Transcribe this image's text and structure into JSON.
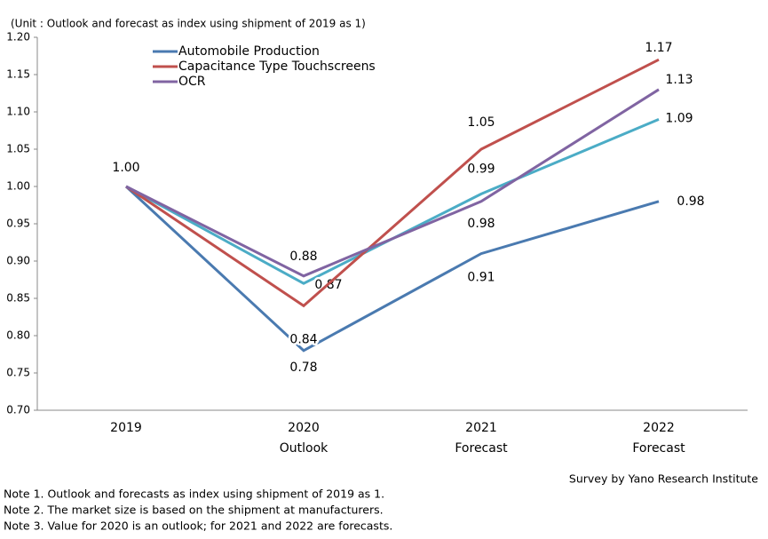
{
  "chart_data": {
    "type": "line",
    "unit_note": "(Unit : Outlook and forecast as index using shipment of 2019 as 1)",
    "categories": [
      "2019",
      "2020",
      "2021",
      "2022"
    ],
    "category_notes": [
      null,
      "Outlook",
      "Forecast",
      "Forecast"
    ],
    "ylim": [
      0.7,
      1.2
    ],
    "yticks": [
      {
        "value": 0.7,
        "label": "0.70"
      },
      0.75,
      {
        "value": 0.8,
        "label": "0.80"
      },
      0.85,
      {
        "value": 0.9,
        "label": "0.90"
      },
      0.95,
      {
        "value": 1.0,
        "label": "1.00"
      },
      1.05,
      {
        "value": 1.1,
        "label": "1.10"
      },
      1.15,
      {
        "value": 1.2,
        "label": "1.20"
      }
    ],
    "grid": false,
    "series": [
      {
        "name": "Automobile Production",
        "color": "#4a7ab0",
        "values": [
          1.0,
          0.78,
          0.91,
          0.98
        ],
        "value_labels": [
          "1.00",
          "0.78",
          "0.91",
          "0.98"
        ]
      },
      {
        "name": "Capacitance Type Touchscreens",
        "color": "#c0504d",
        "values": [
          1.0,
          0.84,
          1.05,
          1.17
        ],
        "value_labels": [
          null,
          "0.84",
          "1.05",
          "1.17"
        ]
      },
      {
        "name": "OCR",
        "color": "#8064a2",
        "values": [
          1.0,
          0.88,
          0.98,
          1.13
        ],
        "value_labels": [
          null,
          "0.88",
          "0.98",
          "1.13"
        ]
      },
      {
        "color": "#4bacc6",
        "values": [
          1.0,
          0.87,
          0.99,
          1.09
        ],
        "value_labels": [
          null,
          "0.87",
          "0.99",
          "1.09"
        ]
      }
    ],
    "source": "Survey by Yano Research Institute"
  },
  "notes": [
    "Note 1.  Outlook and forecasts as index using shipment of 2019 as 1.",
    "Note 2.  The market size is based on the shipment at manufacturers.",
    "Note 3.  Value for 2020 is an outlook; for 2021 and 2022 are forecasts."
  ]
}
